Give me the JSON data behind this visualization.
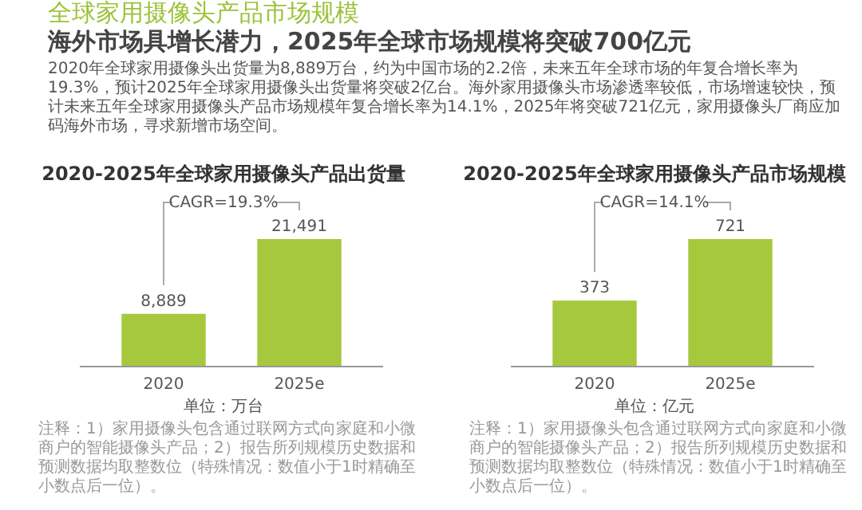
{
  "chart_data": [
    {
      "type": "other",
      "title": "全球家用摄像头产品市场规模",
      "subtitle": "海外市场具增长潜力，2025年全球市场规模将突破700亿元",
      "annotations": [
        "2020年全球家用摄像头出货量为8,889万台，约为中国市场的2.2倍，未来五年全球市场的年复合增长率为19.3%，预计2025年全球家用摄像头出货量将突破2亿台。海外家用摄像头市场渗透率较低，市场增速较快，预计未来五年全球家用摄像头产品市场规模年复合增长率为14.1%，2025年将突破721亿元，家用摄像头厂商应加码海外市场，寻求新增市场空间。"
      ]
    },
    {
      "type": "bar",
      "title": "2020-2025年全球家用摄像头产品出货量",
      "categories": [
        "2020",
        "2025e"
      ],
      "values": [
        8889,
        21491
      ],
      "value_labels": [
        "8,889",
        "21,491"
      ],
      "color": "#a6c83c",
      "annotations": [
        "CAGR=19.3%",
        "单位：万台",
        "注释：1）家用摄像头包含通过联网方式向家庭和小微商户的智能摄像头产品；2）报告所列规模历史数据和预测数据均取整数位（特殊情况：数值小于1时精确至小数点后一位）。"
      ]
    },
    {
      "type": "bar",
      "title": "2020-2025年全球家用摄像头产品市场规模",
      "categories": [
        "2020",
        "2025e"
      ],
      "values": [
        373,
        721
      ],
      "value_labels": [
        "373",
        "721"
      ],
      "color": "#a6c83c",
      "annotations": [
        "CAGR=14.1%",
        "单位：亿元",
        "注释：1）家用摄像头包含通过联网方式向家庭和小微商户的智能摄像头产品；2）报告所列规模历史数据和预测数据均取整数位（特殊情况：数值小于1时精确至小数点后一位）。"
      ]
    }
  ]
}
